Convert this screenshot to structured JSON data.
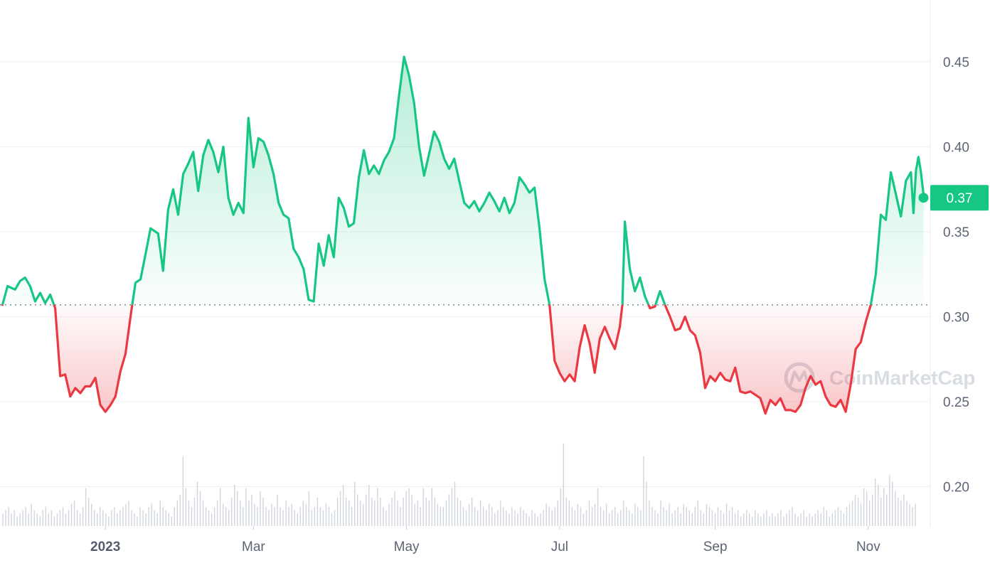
{
  "chart_data": {
    "type": "line",
    "baseline": 0.307,
    "ylim": [
      0.18,
      0.49
    ],
    "y_ticks": [
      {
        "label": "0.45",
        "value": 0.45
      },
      {
        "label": "0.40",
        "value": 0.4
      },
      {
        "label": "0.35",
        "value": 0.35
      },
      {
        "label": "0.30",
        "value": 0.3
      },
      {
        "label": "0.25",
        "value": 0.25
      },
      {
        "label": "0.20",
        "value": 0.2
      }
    ],
    "x_ticks": [
      {
        "label": "2023",
        "date": "2023-01-01",
        "bold": true
      },
      {
        "label": "Mar",
        "date": "2023-03-01",
        "bold": false
      },
      {
        "label": "May",
        "date": "2023-05-01",
        "bold": false
      },
      {
        "label": "Jul",
        "date": "2023-07-01",
        "bold": false
      },
      {
        "label": "Sep",
        "date": "2023-09-01",
        "bold": false
      },
      {
        "label": "Nov",
        "date": "2023-11-01",
        "bold": false
      }
    ],
    "x_range": [
      "2022-11-20",
      "2023-11-24"
    ],
    "series": [
      {
        "values": [
          [
            "2022-11-21",
            0.307
          ],
          [
            "2022-11-23",
            0.318
          ],
          [
            "2022-11-26",
            0.316
          ],
          [
            "2022-11-28",
            0.321
          ],
          [
            "2022-11-30",
            0.323
          ],
          [
            "2022-12-02",
            0.318
          ],
          [
            "2022-12-04",
            0.309
          ],
          [
            "2022-12-06",
            0.314
          ],
          [
            "2022-12-08",
            0.308
          ],
          [
            "2022-12-10",
            0.313
          ],
          [
            "2022-12-12",
            0.305
          ],
          [
            "2022-12-14",
            0.265
          ],
          [
            "2022-12-16",
            0.266
          ],
          [
            "2022-12-18",
            0.253
          ],
          [
            "2022-12-20",
            0.258
          ],
          [
            "2022-12-22",
            0.255
          ],
          [
            "2022-12-24",
            0.259
          ],
          [
            "2022-12-26",
            0.259
          ],
          [
            "2022-12-28",
            0.264
          ],
          [
            "2022-12-30",
            0.248
          ],
          [
            "2023-01-01",
            0.244
          ],
          [
            "2023-01-03",
            0.248
          ],
          [
            "2023-01-05",
            0.253
          ],
          [
            "2023-01-07",
            0.268
          ],
          [
            "2023-01-09",
            0.278
          ],
          [
            "2023-01-11",
            0.3
          ],
          [
            "2023-01-13",
            0.32
          ],
          [
            "2023-01-15",
            0.322
          ],
          [
            "2023-01-17",
            0.337
          ],
          [
            "2023-01-19",
            0.352
          ],
          [
            "2023-01-22",
            0.349
          ],
          [
            "2023-01-24",
            0.327
          ],
          [
            "2023-01-26",
            0.363
          ],
          [
            "2023-01-28",
            0.375
          ],
          [
            "2023-01-30",
            0.36
          ],
          [
            "2023-02-01",
            0.384
          ],
          [
            "2023-02-03",
            0.39
          ],
          [
            "2023-02-05",
            0.397
          ],
          [
            "2023-02-07",
            0.374
          ],
          [
            "2023-02-09",
            0.395
          ],
          [
            "2023-02-11",
            0.404
          ],
          [
            "2023-02-13",
            0.397
          ],
          [
            "2023-02-15",
            0.385
          ],
          [
            "2023-02-17",
            0.4
          ],
          [
            "2023-02-19",
            0.37
          ],
          [
            "2023-02-21",
            0.36
          ],
          [
            "2023-02-23",
            0.367
          ],
          [
            "2023-02-25",
            0.361
          ],
          [
            "2023-02-27",
            0.417
          ],
          [
            "2023-03-01",
            0.388
          ],
          [
            "2023-03-03",
            0.405
          ],
          [
            "2023-03-05",
            0.403
          ],
          [
            "2023-03-07",
            0.395
          ],
          [
            "2023-03-09",
            0.384
          ],
          [
            "2023-03-11",
            0.367
          ],
          [
            "2023-03-13",
            0.36
          ],
          [
            "2023-03-15",
            0.358
          ],
          [
            "2023-03-17",
            0.34
          ],
          [
            "2023-03-19",
            0.335
          ],
          [
            "2023-03-21",
            0.328
          ],
          [
            "2023-03-23",
            0.31
          ],
          [
            "2023-03-25",
            0.309
          ],
          [
            "2023-03-27",
            0.343
          ],
          [
            "2023-03-29",
            0.33
          ],
          [
            "2023-03-31",
            0.348
          ],
          [
            "2023-04-02",
            0.335
          ],
          [
            "2023-04-04",
            0.37
          ],
          [
            "2023-04-06",
            0.364
          ],
          [
            "2023-04-08",
            0.353
          ],
          [
            "2023-04-10",
            0.355
          ],
          [
            "2023-04-12",
            0.382
          ],
          [
            "2023-04-14",
            0.398
          ],
          [
            "2023-04-16",
            0.384
          ],
          [
            "2023-04-18",
            0.389
          ],
          [
            "2023-04-20",
            0.384
          ],
          [
            "2023-04-22",
            0.392
          ],
          [
            "2023-04-24",
            0.397
          ],
          [
            "2023-04-26",
            0.405
          ],
          [
            "2023-04-28",
            0.43
          ],
          [
            "2023-04-30",
            0.453
          ],
          [
            "2023-05-02",
            0.442
          ],
          [
            "2023-05-04",
            0.426
          ],
          [
            "2023-05-06",
            0.4
          ],
          [
            "2023-05-08",
            0.383
          ],
          [
            "2023-05-10",
            0.396
          ],
          [
            "2023-05-12",
            0.409
          ],
          [
            "2023-05-14",
            0.403
          ],
          [
            "2023-05-16",
            0.393
          ],
          [
            "2023-05-18",
            0.387
          ],
          [
            "2023-05-20",
            0.393
          ],
          [
            "2023-05-22",
            0.38
          ],
          [
            "2023-05-24",
            0.367
          ],
          [
            "2023-05-26",
            0.364
          ],
          [
            "2023-05-28",
            0.368
          ],
          [
            "2023-05-30",
            0.362
          ],
          [
            "2023-06-01",
            0.367
          ],
          [
            "2023-06-03",
            0.373
          ],
          [
            "2023-06-05",
            0.368
          ],
          [
            "2023-06-07",
            0.362
          ],
          [
            "2023-06-09",
            0.37
          ],
          [
            "2023-06-11",
            0.361
          ],
          [
            "2023-06-13",
            0.367
          ],
          [
            "2023-06-15",
            0.382
          ],
          [
            "2023-06-17",
            0.378
          ],
          [
            "2023-06-19",
            0.373
          ],
          [
            "2023-06-21",
            0.376
          ],
          [
            "2023-06-23",
            0.352
          ],
          [
            "2023-06-25",
            0.322
          ],
          [
            "2023-06-27",
            0.307
          ],
          [
            "2023-06-29",
            0.274
          ],
          [
            "2023-07-01",
            0.267
          ],
          [
            "2023-07-03",
            0.262
          ],
          [
            "2023-07-05",
            0.266
          ],
          [
            "2023-07-07",
            0.262
          ],
          [
            "2023-07-09",
            0.282
          ],
          [
            "2023-07-11",
            0.295
          ],
          [
            "2023-07-13",
            0.284
          ],
          [
            "2023-07-15",
            0.267
          ],
          [
            "2023-07-17",
            0.287
          ],
          [
            "2023-07-19",
            0.294
          ],
          [
            "2023-07-21",
            0.287
          ],
          [
            "2023-07-23",
            0.281
          ],
          [
            "2023-07-25",
            0.294
          ],
          [
            "2023-07-26",
            0.307
          ],
          [
            "2023-07-27",
            0.356
          ],
          [
            "2023-07-29",
            0.328
          ],
          [
            "2023-07-31",
            0.315
          ],
          [
            "2023-08-02",
            0.323
          ],
          [
            "2023-08-04",
            0.312
          ],
          [
            "2023-08-06",
            0.305
          ],
          [
            "2023-08-08",
            0.306
          ],
          [
            "2023-08-10",
            0.315
          ],
          [
            "2023-08-12",
            0.307
          ],
          [
            "2023-08-14",
            0.3
          ],
          [
            "2023-08-16",
            0.292
          ],
          [
            "2023-08-18",
            0.293
          ],
          [
            "2023-08-20",
            0.3
          ],
          [
            "2023-08-22",
            0.292
          ],
          [
            "2023-08-24",
            0.289
          ],
          [
            "2023-08-26",
            0.279
          ],
          [
            "2023-08-28",
            0.258
          ],
          [
            "2023-08-30",
            0.265
          ],
          [
            "2023-09-01",
            0.262
          ],
          [
            "2023-09-03",
            0.267
          ],
          [
            "2023-09-05",
            0.263
          ],
          [
            "2023-09-07",
            0.262
          ],
          [
            "2023-09-09",
            0.27
          ],
          [
            "2023-09-11",
            0.256
          ],
          [
            "2023-09-13",
            0.255
          ],
          [
            "2023-09-15",
            0.256
          ],
          [
            "2023-09-17",
            0.254
          ],
          [
            "2023-09-19",
            0.252
          ],
          [
            "2023-09-21",
            0.243
          ],
          [
            "2023-09-23",
            0.251
          ],
          [
            "2023-09-25",
            0.248
          ],
          [
            "2023-09-27",
            0.252
          ],
          [
            "2023-09-29",
            0.245
          ],
          [
            "2023-10-01",
            0.245
          ],
          [
            "2023-10-03",
            0.244
          ],
          [
            "2023-10-05",
            0.248
          ],
          [
            "2023-10-07",
            0.258
          ],
          [
            "2023-10-09",
            0.265
          ],
          [
            "2023-10-11",
            0.26
          ],
          [
            "2023-10-13",
            0.262
          ],
          [
            "2023-10-15",
            0.253
          ],
          [
            "2023-10-17",
            0.248
          ],
          [
            "2023-10-19",
            0.247
          ],
          [
            "2023-10-21",
            0.251
          ],
          [
            "2023-10-23",
            0.244
          ],
          [
            "2023-10-25",
            0.26
          ],
          [
            "2023-10-27",
            0.281
          ],
          [
            "2023-10-29",
            0.285
          ],
          [
            "2023-10-31",
            0.297
          ],
          [
            "2023-11-02",
            0.307
          ],
          [
            "2023-11-04",
            0.325
          ],
          [
            "2023-11-06",
            0.36
          ],
          [
            "2023-11-08",
            0.357
          ],
          [
            "2023-11-10",
            0.385
          ],
          [
            "2023-11-12",
            0.372
          ],
          [
            "2023-11-14",
            0.359
          ],
          [
            "2023-11-16",
            0.38
          ],
          [
            "2023-11-18",
            0.385
          ],
          [
            "2023-11-19",
            0.361
          ],
          [
            "2023-11-20",
            0.386
          ],
          [
            "2023-11-21",
            0.394
          ],
          [
            "2023-11-22",
            0.385
          ],
          [
            "2023-11-23",
            0.372
          ]
        ]
      }
    ],
    "volume": [
      4,
      5,
      6,
      4,
      5,
      3,
      4,
      5,
      6,
      4,
      7,
      5,
      4,
      3,
      5,
      6,
      4,
      5,
      3,
      4,
      5,
      6,
      4,
      5,
      7,
      8,
      5,
      4,
      6,
      12,
      9,
      7,
      5,
      4,
      6,
      5,
      4,
      3,
      5,
      6,
      4,
      5,
      6,
      7,
      8,
      5,
      4,
      3,
      6,
      5,
      4,
      6,
      7,
      5,
      4,
      8,
      6,
      5,
      4,
      3,
      6,
      8,
      10,
      22,
      12,
      8,
      6,
      9,
      14,
      11,
      8,
      6,
      5,
      4,
      6,
      8,
      12,
      7,
      6,
      5,
      9,
      13,
      11,
      8,
      6,
      12,
      8,
      10,
      7,
      6,
      11,
      9,
      6,
      5,
      7,
      6,
      10,
      6,
      5,
      8,
      6,
      7,
      5,
      4,
      6,
      8,
      7,
      11,
      5,
      6,
      9,
      6,
      5,
      7,
      6,
      4,
      5,
      9,
      11,
      13,
      9,
      8,
      6,
      14,
      10,
      8,
      7,
      10,
      13,
      9,
      8,
      12,
      9,
      6,
      5,
      7,
      9,
      11,
      8,
      6,
      9,
      11,
      12,
      10,
      7,
      8,
      6,
      12,
      9,
      8,
      12,
      9,
      7,
      6,
      6,
      8,
      10,
      12,
      14,
      9,
      8,
      6,
      5,
      7,
      9,
      6,
      5,
      8,
      6,
      5,
      7,
      6,
      4,
      5,
      8,
      6,
      5,
      4,
      6,
      5,
      4,
      6,
      5,
      4,
      3,
      5,
      4,
      3,
      4,
      5,
      7,
      6,
      5,
      6,
      8,
      12,
      26,
      9,
      8,
      6,
      5,
      7,
      6,
      4,
      5,
      8,
      6,
      7,
      12,
      6,
      5,
      7,
      4,
      5,
      6,
      4,
      5,
      8,
      6,
      5,
      4,
      7,
      6,
      5,
      22,
      14,
      8,
      6,
      5,
      4,
      8,
      6,
      5,
      7,
      4,
      5,
      6,
      4,
      7,
      6,
      5,
      4,
      6,
      8,
      5,
      4,
      7,
      6,
      5,
      4,
      6,
      5,
      4,
      7,
      5,
      6,
      4,
      5,
      3,
      4,
      5,
      4,
      3,
      5,
      4,
      3,
      4,
      5,
      3,
      4,
      3,
      4,
      5,
      3,
      4,
      5,
      6,
      4,
      3,
      4,
      5,
      3,
      4,
      3,
      4,
      5,
      4,
      6,
      5,
      3,
      4,
      5,
      6,
      5,
      4,
      6,
      7,
      8,
      10,
      9,
      7,
      12,
      11,
      8,
      10,
      15,
      13,
      9,
      12,
      10,
      16,
      14,
      11,
      9,
      8,
      10,
      8,
      7,
      6,
      7
    ],
    "last_value_label": "0.37",
    "last_value": 0.37,
    "colors": {
      "up": "#16c784",
      "down": "#ea3943",
      "grid": "#eff2f5",
      "baseline": "#8a8f98",
      "volume": "#d1d6de",
      "badge": "#16c784"
    }
  },
  "watermark": {
    "text": "CoinMarketCap",
    "icon": "coinmarketcap-logo-icon"
  }
}
